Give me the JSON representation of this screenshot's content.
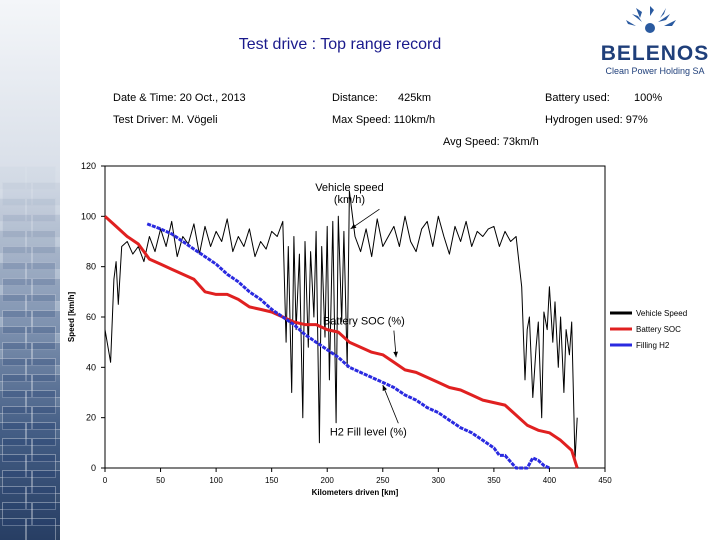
{
  "header": {
    "title": "Test drive : Top range record",
    "logo_name": "BELENOS",
    "logo_subtitle": "Clean Power Holding SA"
  },
  "info": {
    "date_time": "Date & Time:  20 Oct., 2013",
    "test_driver": "Test Driver:  M. Vögeli",
    "distance_label": "Distance:",
    "distance_value": "425km",
    "max_speed": "Max Speed: 110km/h",
    "battery_label": "Battery used:",
    "battery_value": "100%",
    "hydrogen_used": "Hydrogen used:  97%",
    "avg_speed": "Avg Speed: 73km/h"
  },
  "chart_data": {
    "type": "line",
    "xlabel": "Kilometers driven [km]",
    "ylabel": "Speed [km/h]",
    "xlim": [
      0,
      450
    ],
    "ylim": [
      0,
      120
    ],
    "x_ticks": [
      0,
      50,
      100,
      150,
      200,
      250,
      300,
      350,
      400,
      450
    ],
    "y_ticks": [
      0,
      20,
      40,
      60,
      80,
      100,
      120
    ],
    "grid": false,
    "legend_position": "right",
    "annotations": [
      {
        "text": "Vehicle speed\n(km/h)",
        "x": 220,
        "y": 110,
        "arrow_to": [
          221,
          95
        ]
      },
      {
        "text": "Battery SOC (%)",
        "x": 233,
        "y": 57,
        "arrow_to": [
          262,
          44
        ]
      },
      {
        "text": "H2 Fill level (%)",
        "x": 237,
        "y": 13,
        "arrow_to": [
          250,
          33
        ]
      }
    ],
    "series": [
      {
        "name": "Vehicle Speed",
        "color": "#000000",
        "x": [
          0,
          5,
          8,
          10,
          12,
          15,
          20,
          25,
          30,
          35,
          40,
          45,
          50,
          55,
          60,
          65,
          70,
          75,
          80,
          85,
          90,
          95,
          100,
          105,
          110,
          115,
          120,
          125,
          130,
          135,
          140,
          145,
          150,
          155,
          160,
          163,
          165,
          168,
          170,
          172,
          175,
          178,
          180,
          183,
          185,
          188,
          190,
          193,
          195,
          198,
          200,
          202,
          205,
          208,
          210,
          213,
          215,
          218,
          220,
          225,
          230,
          235,
          240,
          245,
          250,
          255,
          260,
          265,
          270,
          275,
          280,
          285,
          290,
          295,
          300,
          305,
          310,
          315,
          320,
          325,
          330,
          335,
          340,
          345,
          350,
          355,
          360,
          365,
          370,
          375,
          378,
          380,
          382,
          385,
          388,
          390,
          393,
          395,
          398,
          400,
          403,
          405,
          408,
          410,
          413,
          415,
          418,
          420,
          423,
          425
        ],
        "y": [
          55,
          42,
          75,
          82,
          65,
          88,
          90,
          85,
          88,
          82,
          92,
          86,
          95,
          88,
          98,
          84,
          92,
          89,
          97,
          85,
          96,
          88,
          94,
          90,
          99,
          86,
          92,
          88,
          95,
          84,
          90,
          87,
          94,
          92,
          98,
          50,
          88,
          30,
          92,
          55,
          85,
          20,
          90,
          48,
          86,
          60,
          94,
          10,
          88,
          52,
          96,
          35,
          98,
          18,
          100,
          58,
          94,
          40,
          110,
          92,
          86,
          95,
          84,
          99,
          88,
          92,
          96,
          88,
          100,
          90,
          86,
          95,
          98,
          88,
          100,
          92,
          85,
          96,
          90,
          98,
          88,
          94,
          92,
          95,
          96,
          88,
          94,
          90,
          92,
          72,
          35,
          55,
          60,
          28,
          48,
          58,
          20,
          62,
          55,
          72,
          50,
          66,
          40,
          60,
          30,
          55,
          45,
          58,
          3,
          20
        ]
      },
      {
        "name": "Battery SOC",
        "color": "#e02020",
        "x": [
          0,
          10,
          20,
          30,
          40,
          50,
          60,
          70,
          80,
          90,
          100,
          110,
          120,
          130,
          140,
          150,
          160,
          170,
          180,
          190,
          200,
          210,
          220,
          230,
          240,
          250,
          260,
          270,
          280,
          290,
          300,
          310,
          320,
          330,
          340,
          350,
          360,
          370,
          380,
          390,
          400,
          410,
          420,
          425
        ],
        "y": [
          100,
          96,
          92,
          89,
          83,
          81,
          79,
          77,
          75,
          70,
          69,
          69,
          67,
          64,
          63,
          62,
          60,
          58,
          57,
          57,
          55,
          54,
          50,
          48,
          46,
          45,
          42,
          39,
          38,
          36,
          34,
          32,
          31,
          29,
          27,
          26,
          25,
          21,
          17,
          15,
          14,
          11,
          7,
          0
        ]
      },
      {
        "name": "Filling H2",
        "color": "#2a2ae0",
        "x": [
          38,
          50,
          60,
          70,
          80,
          90,
          100,
          110,
          120,
          130,
          140,
          150,
          160,
          170,
          180,
          190,
          200,
          210,
          220,
          230,
          240,
          250,
          260,
          270,
          280,
          290,
          300,
          310,
          320,
          330,
          340,
          350,
          355,
          360,
          370,
          380,
          385,
          390,
          395,
          400
        ],
        "y": [
          97,
          95,
          93,
          90,
          87,
          84,
          81,
          77,
          74,
          70,
          67,
          63,
          60,
          57,
          53,
          50,
          47,
          44,
          40,
          38,
          36,
          34,
          32,
          29,
          27,
          24,
          22,
          19,
          16,
          14,
          11,
          8,
          5,
          5,
          0,
          0,
          4,
          3,
          1,
          0
        ]
      }
    ]
  }
}
